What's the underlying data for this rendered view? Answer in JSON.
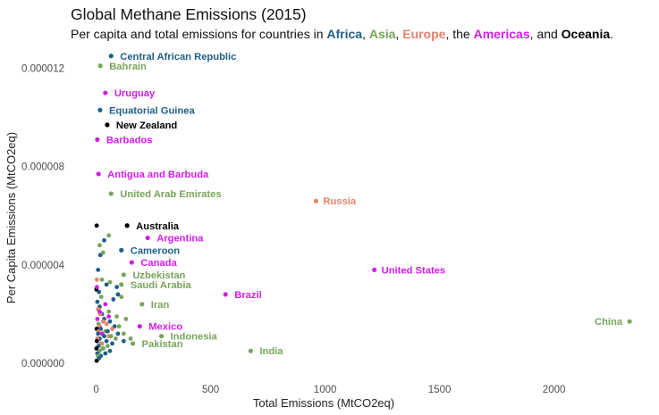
{
  "title": "Global Methane Emissions (2015)",
  "subtitle": {
    "prefix": "Per capita and total emissions for countries in ",
    "sep1": ", ",
    "sep2": ", ",
    "sep3": ", the ",
    "sep4": ", and ",
    "suffix": ".",
    "regions": [
      {
        "name": "Africa",
        "color": "#1f5f86"
      },
      {
        "name": "Asia",
        "color": "#78a55a"
      },
      {
        "name": "Europe",
        "color": "#e8836a"
      },
      {
        "name": "Americas",
        "color": "#d11ee8"
      },
      {
        "name": "Oceania",
        "color": "#000000"
      }
    ]
  },
  "chart_data": {
    "type": "scatter",
    "title": "Global Methane Emissions (2015)",
    "xlabel": "Total Emissions (MtCO2eq)",
    "ylabel": "Per Capita Emissions (MtCO2eq)",
    "xlim": [
      -100,
      2400
    ],
    "ylim": [
      -4e-07,
      1.26e-05
    ],
    "xticks": [
      0,
      500,
      1000,
      1500,
      2000
    ],
    "xtick_labels": [
      "0",
      "500",
      "1000",
      "1500",
      "2000"
    ],
    "yticks": [
      0,
      4e-06,
      8e-06,
      1.2e-05
    ],
    "ytick_labels": [
      "0.000000",
      "0.000004",
      "0.000008",
      "0.000012"
    ],
    "grid": false,
    "colors": {
      "Africa": "#1f5f86",
      "Asia": "#78a55a",
      "Europe": "#e8836a",
      "Americas": "#d11ee8",
      "Oceania": "#000000"
    },
    "labeled_points": [
      {
        "label": "Central African Republic",
        "region": "Africa",
        "x": 65,
        "y": 1.25e-05
      },
      {
        "label": "Bahrain",
        "region": "Asia",
        "x": 18,
        "y": 1.21e-05
      },
      {
        "label": "Uruguay",
        "region": "Americas",
        "x": 40,
        "y": 1.1e-05
      },
      {
        "label": "Equatorial Guinea",
        "region": "Africa",
        "x": 17,
        "y": 1.03e-05
      },
      {
        "label": "New Zealand",
        "region": "Oceania",
        "x": 48,
        "y": 9.7e-06
      },
      {
        "label": "Barbados",
        "region": "Americas",
        "x": 5,
        "y": 9.1e-06
      },
      {
        "label": "Antigua and Barbuda",
        "region": "Americas",
        "x": 10,
        "y": 7.7e-06
      },
      {
        "label": "United Arab Emirates",
        "region": "Asia",
        "x": 65,
        "y": 6.9e-06
      },
      {
        "label": "Russia",
        "region": "Europe",
        "x": 960,
        "y": 6.6e-06
      },
      {
        "label": "Australia",
        "region": "Oceania",
        "x": 135,
        "y": 5.6e-06
      },
      {
        "label": "Argentina",
        "region": "Americas",
        "x": 225,
        "y": 5.1e-06
      },
      {
        "label": "Cameroon",
        "region": "Africa",
        "x": 110,
        "y": 4.6e-06
      },
      {
        "label": "Canada",
        "region": "Americas",
        "x": 155,
        "y": 4.1e-06
      },
      {
        "label": "United States",
        "region": "Americas",
        "x": 1215,
        "y": 3.8e-06
      },
      {
        "label": "Uzbekistan",
        "region": "Asia",
        "x": 120,
        "y": 3.6e-06
      },
      {
        "label": "Saudi Arabia",
        "region": "Asia",
        "x": 110,
        "y": 3.2e-06
      },
      {
        "label": "Brazil",
        "region": "Americas",
        "x": 565,
        "y": 2.8e-06
      },
      {
        "label": "Iran",
        "region": "Asia",
        "x": 200,
        "y": 2.4e-06
      },
      {
        "label": "Mexico",
        "region": "Americas",
        "x": 190,
        "y": 1.5e-06
      },
      {
        "label": "Indonesia",
        "region": "Asia",
        "x": 285,
        "y": 1.1e-06
      },
      {
        "label": "Pakistan",
        "region": "Asia",
        "x": 160,
        "y": 8e-07
      },
      {
        "label": "India",
        "region": "Asia",
        "x": 675,
        "y": 5e-07
      },
      {
        "label": "China",
        "region": "Asia",
        "x": 2330,
        "y": 1.7e-06
      }
    ],
    "other_points": [
      {
        "region": "Oceania",
        "x": 2,
        "y": 5.6e-06
      },
      {
        "region": "Asia",
        "x": 55,
        "y": 5.2e-06
      },
      {
        "region": "Africa",
        "x": 35,
        "y": 5e-06
      },
      {
        "region": "Asia",
        "x": 15,
        "y": 4.8e-06
      },
      {
        "region": "Africa",
        "x": 18,
        "y": 4.4e-06
      },
      {
        "region": "Asia",
        "x": 30,
        "y": 4.5e-06
      },
      {
        "region": "Asia",
        "x": 25,
        "y": 3.4e-06
      },
      {
        "region": "Africa",
        "x": 8,
        "y": 3.8e-06
      },
      {
        "region": "Europe",
        "x": 3,
        "y": 3.4e-06
      },
      {
        "region": "Africa",
        "x": 45,
        "y": 3.2e-06
      },
      {
        "region": "Asia",
        "x": 60,
        "y": 3.3e-06
      },
      {
        "region": "Africa",
        "x": 90,
        "y": 3.1e-06
      },
      {
        "region": "Africa",
        "x": 95,
        "y": 2.8e-06
      },
      {
        "region": "Asia",
        "x": 110,
        "y": 2.7e-06
      },
      {
        "region": "Africa",
        "x": 75,
        "y": 2.6e-06
      },
      {
        "region": "Oceania",
        "x": 1,
        "y": 3e-06
      },
      {
        "region": "Americas",
        "x": 3,
        "y": 3.1e-06
      },
      {
        "region": "Africa",
        "x": 12,
        "y": 2.9e-06
      },
      {
        "region": "Asia",
        "x": 22,
        "y": 2.7e-06
      },
      {
        "region": "Africa",
        "x": 5,
        "y": 2.5e-06
      },
      {
        "region": "Americas",
        "x": 40,
        "y": 2.4e-06
      },
      {
        "region": "Africa",
        "x": 15,
        "y": 2.3e-06
      },
      {
        "region": "Europe",
        "x": 8,
        "y": 2.2e-06
      },
      {
        "region": "Asia",
        "x": 55,
        "y": 2.1e-06
      },
      {
        "region": "Africa",
        "x": 25,
        "y": 2e-06
      },
      {
        "region": "Europe",
        "x": 18,
        "y": 2e-06
      },
      {
        "region": "Asia",
        "x": 90,
        "y": 1.9e-06
      },
      {
        "region": "Africa",
        "x": 35,
        "y": 1.8e-06
      },
      {
        "region": "Americas",
        "x": 5,
        "y": 1.8e-06
      },
      {
        "region": "Asia",
        "x": 130,
        "y": 1.8e-06
      },
      {
        "region": "Europe",
        "x": 30,
        "y": 1.7e-06
      },
      {
        "region": "Africa",
        "x": 60,
        "y": 1.7e-06
      },
      {
        "region": "Asia",
        "x": 10,
        "y": 1.6e-06
      },
      {
        "region": "Europe",
        "x": 45,
        "y": 1.6e-06
      },
      {
        "region": "Africa",
        "x": 80,
        "y": 1.5e-06
      },
      {
        "region": "Asia",
        "x": 100,
        "y": 1.5e-06
      },
      {
        "region": "Europe",
        "x": 15,
        "y": 1.5e-06
      },
      {
        "region": "Oceania",
        "x": 2,
        "y": 1.4e-06
      },
      {
        "region": "Africa",
        "x": 20,
        "y": 1.4e-06
      },
      {
        "region": "Europe",
        "x": 70,
        "y": 1.4e-06
      },
      {
        "region": "Asia",
        "x": 40,
        "y": 1.3e-06
      },
      {
        "region": "Africa",
        "x": 50,
        "y": 1.3e-06
      },
      {
        "region": "Europe",
        "x": 10,
        "y": 1.3e-06
      },
      {
        "region": "Asia",
        "x": 120,
        "y": 1.2e-06
      },
      {
        "region": "Africa",
        "x": 8,
        "y": 1.2e-06
      },
      {
        "region": "Americas",
        "x": 25,
        "y": 1.2e-06
      },
      {
        "region": "Europe",
        "x": 55,
        "y": 1.1e-06
      },
      {
        "region": "Africa",
        "x": 35,
        "y": 1.1e-06
      },
      {
        "region": "Asia",
        "x": 65,
        "y": 1.1e-06
      },
      {
        "region": "Africa",
        "x": 15,
        "y": 1e-06
      },
      {
        "region": "Europe",
        "x": 5,
        "y": 1e-06
      },
      {
        "region": "Asia",
        "x": 85,
        "y": 1e-06
      },
      {
        "region": "Africa",
        "x": 120,
        "y": 9e-07
      },
      {
        "region": "Oceania",
        "x": 3,
        "y": 9e-07
      },
      {
        "region": "Africa",
        "x": 45,
        "y": 9e-07
      },
      {
        "region": "Asia",
        "x": 25,
        "y": 8e-07
      },
      {
        "region": "Africa",
        "x": 70,
        "y": 8e-07
      },
      {
        "region": "Europe",
        "x": 20,
        "y": 8e-07
      },
      {
        "region": "Africa",
        "x": 10,
        "y": 7e-07
      },
      {
        "region": "Asia",
        "x": 50,
        "y": 7e-07
      },
      {
        "region": "Africa",
        "x": 30,
        "y": 6e-07
      },
      {
        "region": "Oceania",
        "x": 1,
        "y": 6e-07
      },
      {
        "region": "Africa",
        "x": 60,
        "y": 5e-07
      },
      {
        "region": "Asia",
        "x": 15,
        "y": 5e-07
      },
      {
        "region": "Africa",
        "x": 5,
        "y": 4e-07
      },
      {
        "region": "Africa",
        "x": 40,
        "y": 4e-07
      },
      {
        "region": "Africa",
        "x": 20,
        "y": 3e-07
      },
      {
        "region": "Asia",
        "x": 8,
        "y": 3e-07
      },
      {
        "region": "Oceania",
        "x": 2,
        "y": 1e-07
      },
      {
        "region": "Africa",
        "x": 12,
        "y": 2e-07
      },
      {
        "region": "Asia",
        "x": 28,
        "y": 6e-07
      },
      {
        "region": "Americas",
        "x": 15,
        "y": 2.1e-06
      },
      {
        "region": "Americas",
        "x": 55,
        "y": 1.9e-06
      },
      {
        "region": "Africa",
        "x": 95,
        "y": 1.2e-06
      },
      {
        "region": "Asia",
        "x": 150,
        "y": 1e-06
      }
    ]
  }
}
